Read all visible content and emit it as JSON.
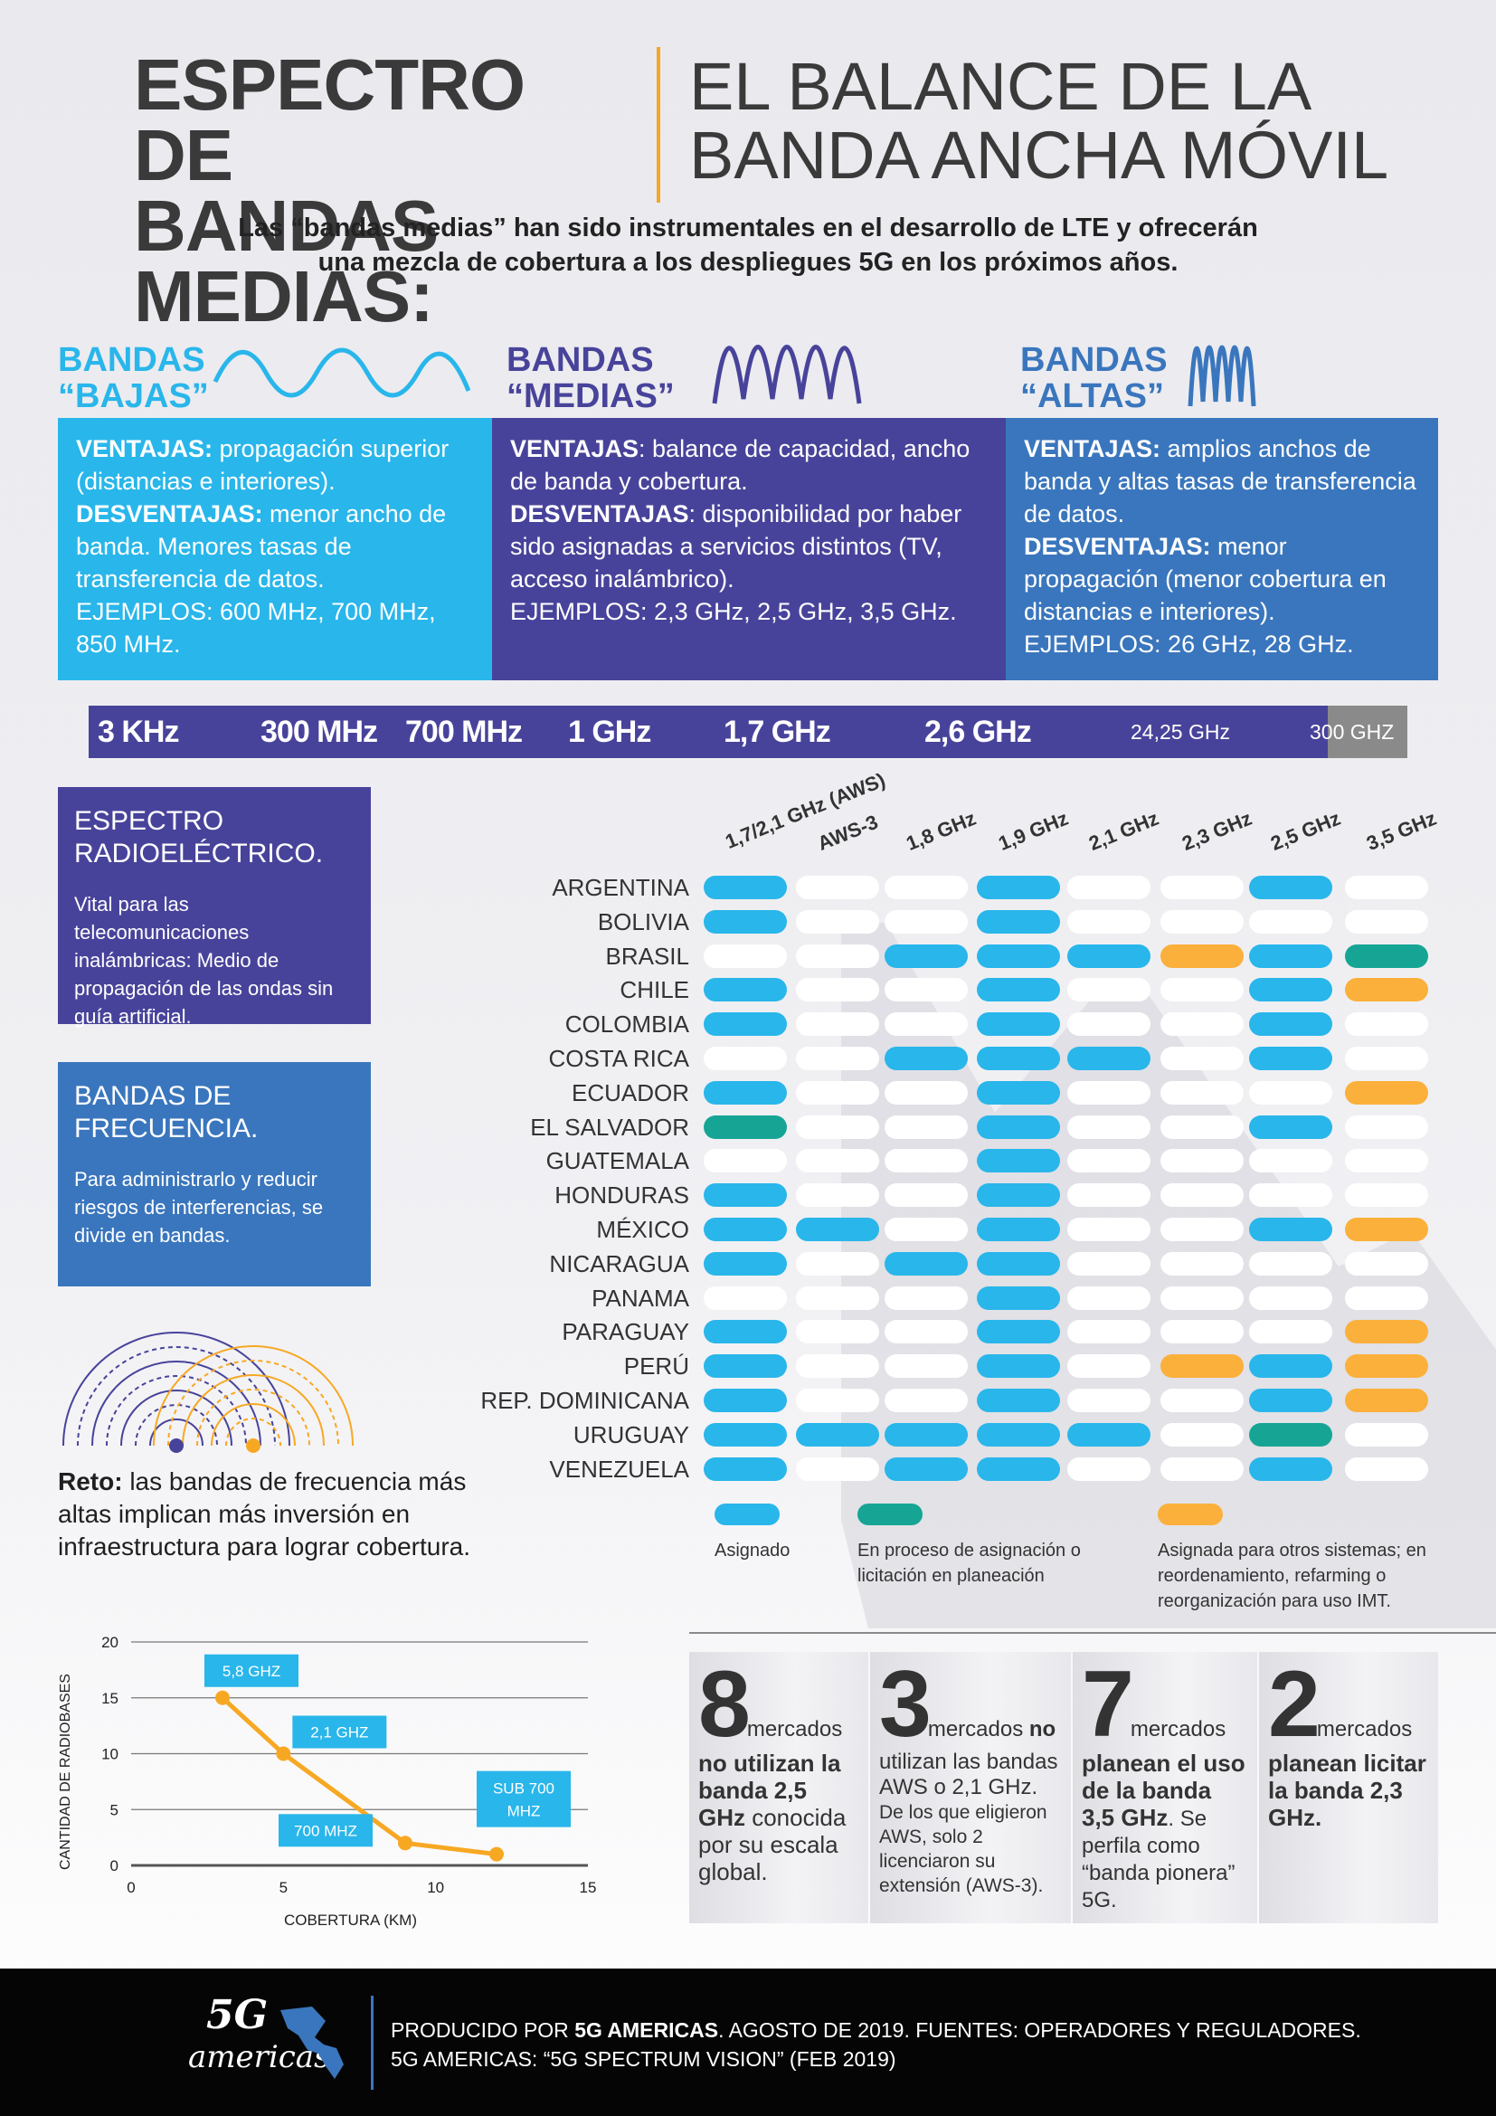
{
  "title": {
    "left_line1": "ESPECTRO DE",
    "left_line2": "BANDAS MEDIAS:",
    "right_line1": "EL BALANCE DE LA",
    "right_line2": "BANDA ANCHA MÓVIL"
  },
  "subtitle_line1": "Las “bandas medias” han sido instrumentales en el desarrollo de LTE y ofrecerán",
  "subtitle_line2": "una mezcla de cobertura a los despliegues 5G en los próximos años.",
  "colors": {
    "low": "#29b6ea",
    "mid": "#48439a",
    "high": "#3a76bd",
    "assigned": "#29b6ea",
    "process": "#16a594",
    "other": "#fbb03b",
    "empty": "#ffffff",
    "chart_line": "#f7a823"
  },
  "bands": [
    {
      "title1": "BANDAS",
      "title2": "“BAJAS”",
      "adv_label": "VENTAJAS:",
      "adv": " propagación superior (distancias e interiores).",
      "dis_label": "DESVENTAJAS:",
      "dis": " menor ancho de banda. Menores tasas de transferencia de datos.",
      "ex": "EJEMPLOS: 600 MHz, 700 MHz, 850 MHz."
    },
    {
      "title1": "BANDAS",
      "title2": "“MEDIAS”",
      "adv_label": "VENTAJAS",
      "adv": ": balance de capacidad, ancho de banda y cobertura.",
      "dis_label": "DESVENTAJAS",
      "dis": ": disponibilidad por haber sido asignadas a servicios distintos (TV, acceso inalámbrico).",
      "ex": "EJEMPLOS: 2,3 GHz, 2,5 GHz, 3,5 GHz."
    },
    {
      "title1": "BANDAS",
      "title2": "“ALTAS”",
      "adv_label": "VENTAJAS:",
      "adv": " amplios anchos de banda y altas tasas de transferencia de datos.",
      "dis_label": "DESVENTAJAS:",
      "dis": " menor propagación (menor cobertura en distancias e interiores).",
      "ex": "EJEMPLOS: 26 GHz, 28 GHz."
    }
  ],
  "scale": [
    "3 KHz",
    "300 MHz",
    "700 MHz",
    "1 GHz",
    "1,7 GHz",
    "2,6 GHz",
    "24,25 GHz",
    "300 GHZ"
  ],
  "info": [
    {
      "title": "ESPECTRO RADIOELÉCTRICO.",
      "text": "Vital para las telecomunicaciones inalámbricas: Medio de propagación de las ondas sin guía artificial."
    },
    {
      "title": "BANDAS DE FRECUENCIA.",
      "text": "Para administrarlo y reducir riesgos de interferencias, se divide en bandas."
    }
  ],
  "reto": {
    "bold": "Reto:",
    "text": " las bandas de frecuencia más altas implican más inversión en infraestructura para lograr cobertura."
  },
  "matrix": {
    "columns": [
      "1,7/2,1 GHz (AWS)",
      "AWS-3",
      "1,8 GHz",
      "1,9 GHz",
      "2,1 GHz",
      "2,3 GHz",
      "2,5 GHz",
      "3,5 GHz"
    ],
    "rows": [
      {
        "country": "ARGENTINA",
        "cells": "a00a00a0"
      },
      {
        "country": "BOLIVIA",
        "cells": "a00a0000"
      },
      {
        "country": "BRASIL",
        "cells": "00aaaoap"
      },
      {
        "country": "CHILE",
        "cells": "a00a00ao"
      },
      {
        "country": "COLOMBIA",
        "cells": "a00a00a0"
      },
      {
        "country": "COSTA RICA",
        "cells": "00aaa0a0"
      },
      {
        "country": "ECUADOR",
        "cells": "a00a000o"
      },
      {
        "country": "EL SALVADOR",
        "cells": "p00a00a0"
      },
      {
        "country": "GUATEMALA",
        "cells": "000a0000"
      },
      {
        "country": "HONDURAS",
        "cells": "a00a0000"
      },
      {
        "country": "MÉXICO",
        "cells": "aa0a00ao"
      },
      {
        "country": "NICARAGUA",
        "cells": "a0aa0000"
      },
      {
        "country": "PANAMA",
        "cells": "000a0000"
      },
      {
        "country": "PARAGUAY",
        "cells": "a00a000o"
      },
      {
        "country": "PERÚ",
        "cells": "a00a0oao"
      },
      {
        "country": "REP. DOMINICANA",
        "cells": "a00a00ao"
      },
      {
        "country": "URUGUAY",
        "cells": "aaaaa0p0"
      },
      {
        "country": "VENEZUELA",
        "cells": "a0aa00a0"
      }
    ],
    "legend": [
      {
        "key": "assigned",
        "text": "Asignado"
      },
      {
        "key": "process",
        "text": "En proceso de asignación o licitación en planeación"
      },
      {
        "key": "other",
        "text": "Asignada para otros sistemas; en reordenamiento, refarming o reorganización para uso IMT."
      }
    ]
  },
  "chart_data": {
    "type": "line",
    "xlabel": "COBERTURA (KM)",
    "ylabel": "CANTIDAD DE RADIOBASES",
    "xlim": [
      0,
      15
    ],
    "ylim": [
      0,
      20
    ],
    "xticks": [
      0,
      5,
      10,
      15
    ],
    "yticks": [
      0,
      5,
      10,
      15,
      20
    ],
    "points": [
      {
        "label": "5,8 GHZ",
        "x": 3,
        "y": 15
      },
      {
        "label": "2,1 GHZ",
        "x": 5,
        "y": 10
      },
      {
        "label": "700 MHZ",
        "x": 9,
        "y": 2
      },
      {
        "label": "SUB 700 MHZ",
        "x": 12,
        "y": 1
      }
    ]
  },
  "stats": [
    {
      "num": "8",
      "sm": "mercados",
      "bold": "no utilizan la banda 2,5 GHz",
      "rest": " conocida por su escala global."
    },
    {
      "num": "3",
      "sm": "mercados",
      "bold_inline": " no",
      "bold": "",
      "text_bold2": "utilizan las bandas AWS o 2,1 GHz.",
      "rest": " De los que eligieron AWS, solo 2 licenciaron su extensión (AWS-3)."
    },
    {
      "num": "7",
      "sm": "mercados",
      "bold": "planean el uso de la banda 3,5 GHz",
      "rest": ". Se perfila como “banda pionera” 5G."
    },
    {
      "num": "2",
      "sm": "mercados",
      "bold": "planean licitar la banda 2,3 GHz.",
      "rest": ""
    }
  ],
  "footer": {
    "logo_5g": "5G",
    "logo_americas": "americas",
    "line1_a": "PRODUCIDO POR ",
    "line1_b": "5G AMERICAS",
    "line1_c": ". AGOSTO DE 2019. FUENTES: OPERADORES Y REGULADORES.",
    "line2": "5G AMERICAS: “5G SPECTRUM VISION” (FEB 2019)"
  }
}
